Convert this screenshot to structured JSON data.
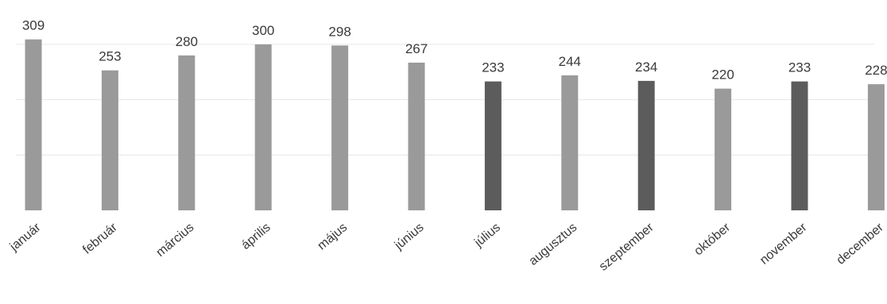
{
  "chart_data": {
    "type": "bar",
    "title": "",
    "xlabel": "",
    "ylabel": "",
    "categories": [
      "január",
      "február",
      "március",
      "április",
      "május",
      "június",
      "július",
      "augusztus",
      "szeptember",
      "október",
      "november",
      "december"
    ],
    "values": [
      309,
      253,
      280,
      300,
      298,
      267,
      233,
      244,
      234,
      220,
      233,
      228
    ],
    "value_labels": [
      "309",
      "253",
      "280",
      "300",
      "298",
      "267",
      "233",
      "244",
      "234",
      "220",
      "233",
      "228"
    ],
    "ylim": [
      0,
      320
    ],
    "grid": true,
    "legend": "none",
    "bar_colors": [
      "#9a9a9a",
      "#9a9a9a",
      "#9a9a9a",
      "#9a9a9a",
      "#9a9a9a",
      "#9a9a9a",
      "#5c5c5c",
      "#9a9a9a",
      "#5c5c5c",
      "#9a9a9a",
      "#5c5c5c",
      "#9a9a9a"
    ]
  }
}
